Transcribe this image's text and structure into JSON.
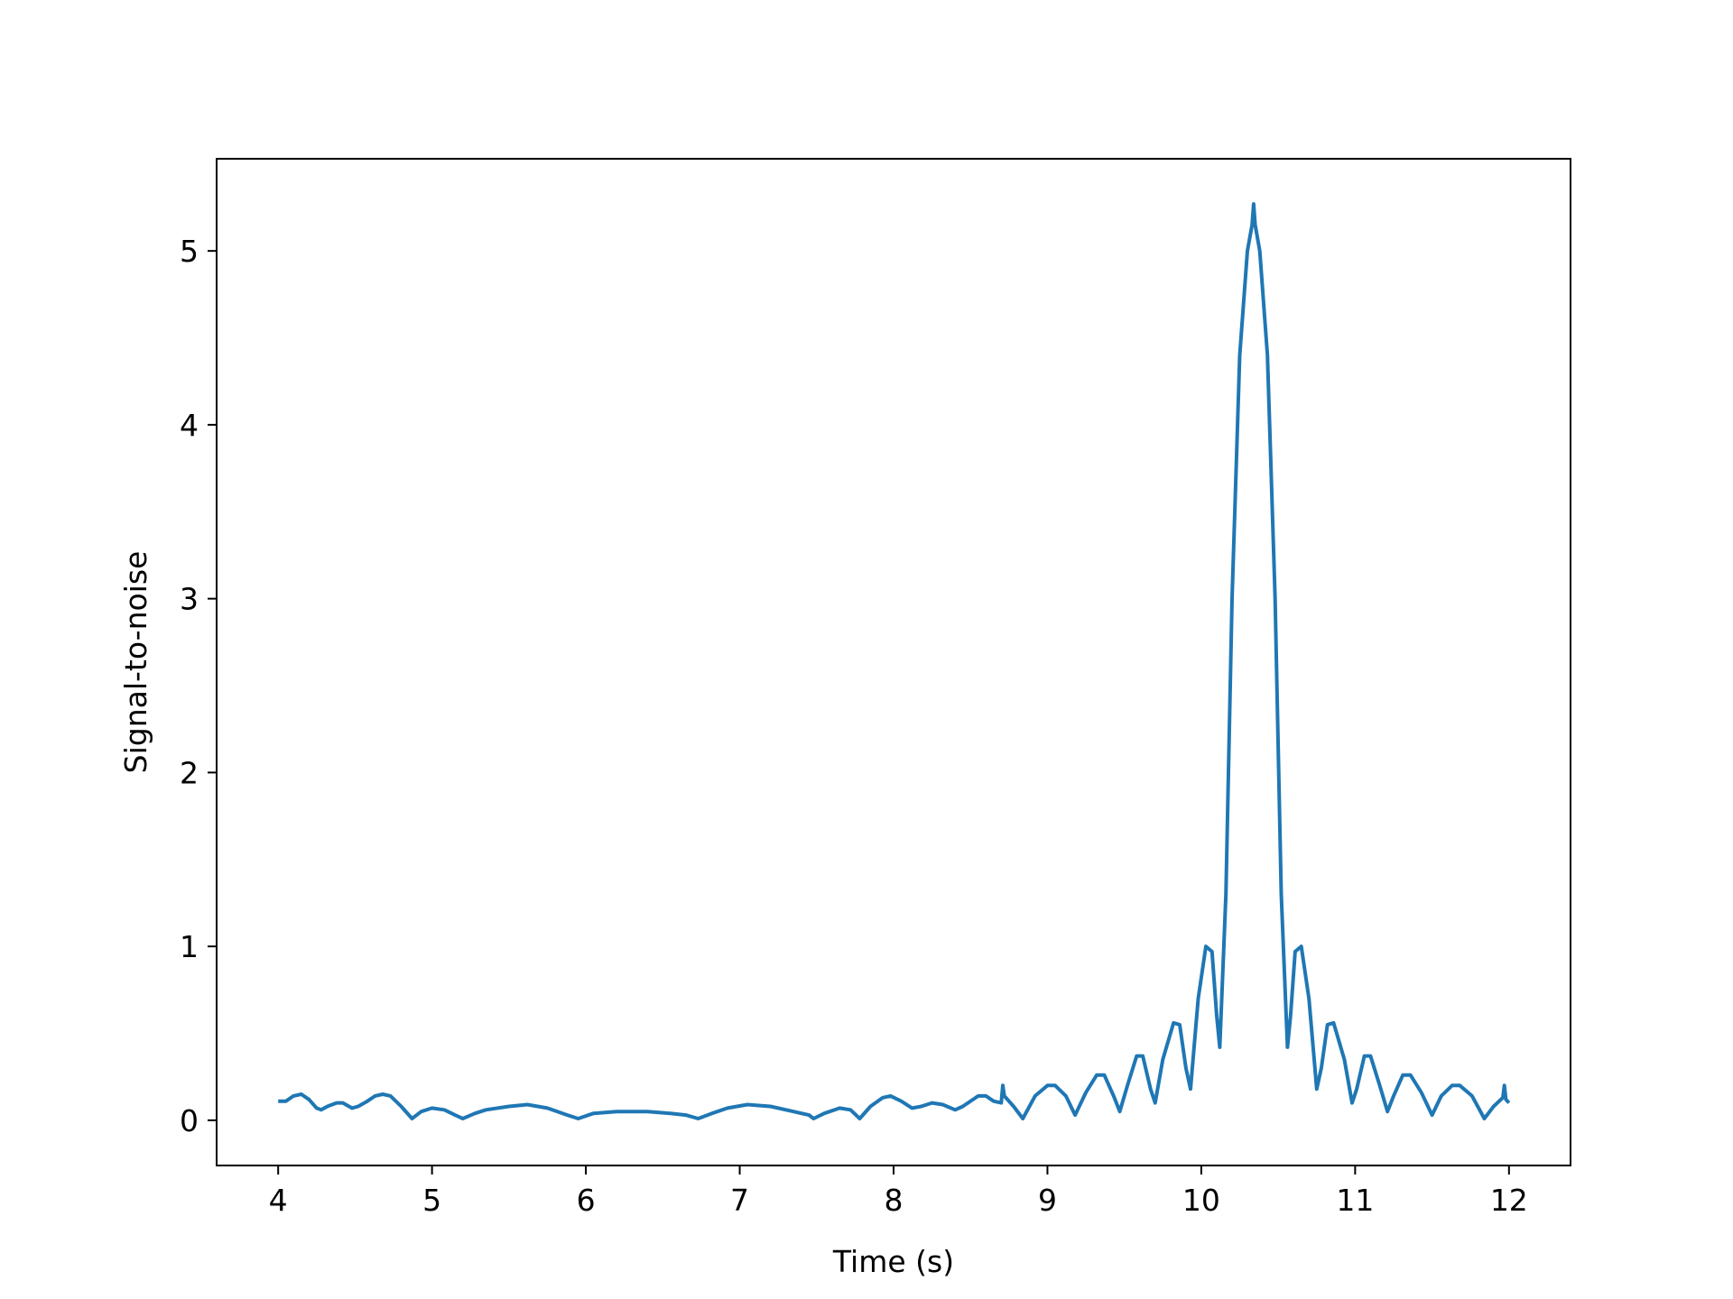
{
  "chart_data": {
    "type": "line",
    "title": "",
    "xlabel": "Time (s)",
    "ylabel": "Signal-to-noise",
    "xlim": [
      3.6,
      12.4
    ],
    "ylim": [
      -0.26,
      5.53
    ],
    "xticks": [
      4,
      5,
      6,
      7,
      8,
      9,
      10,
      11,
      12
    ],
    "yticks": [
      0,
      1,
      2,
      3,
      4,
      5
    ],
    "grid": false,
    "legend": "none",
    "series": [
      {
        "color": "#1f77b4",
        "points": [
          [
            4.0,
            0.11
          ],
          [
            4.05,
            0.11
          ],
          [
            4.1,
            0.14
          ],
          [
            4.15,
            0.15
          ],
          [
            4.2,
            0.12
          ],
          [
            4.25,
            0.07
          ],
          [
            4.28,
            0.06
          ],
          [
            4.32,
            0.08
          ],
          [
            4.38,
            0.1
          ],
          [
            4.42,
            0.1
          ],
          [
            4.48,
            0.07
          ],
          [
            4.52,
            0.08
          ],
          [
            4.58,
            0.11
          ],
          [
            4.63,
            0.14
          ],
          [
            4.68,
            0.15
          ],
          [
            4.73,
            0.14
          ],
          [
            4.8,
            0.08
          ],
          [
            4.87,
            0.01
          ],
          [
            4.93,
            0.05
          ],
          [
            5.0,
            0.07
          ],
          [
            5.08,
            0.06
          ],
          [
            5.15,
            0.03
          ],
          [
            5.2,
            0.01
          ],
          [
            5.28,
            0.04
          ],
          [
            5.35,
            0.06
          ],
          [
            5.5,
            0.08
          ],
          [
            5.62,
            0.09
          ],
          [
            5.75,
            0.07
          ],
          [
            5.88,
            0.03
          ],
          [
            5.95,
            0.01
          ],
          [
            6.05,
            0.04
          ],
          [
            6.2,
            0.05
          ],
          [
            6.4,
            0.05
          ],
          [
            6.55,
            0.04
          ],
          [
            6.65,
            0.03
          ],
          [
            6.73,
            0.01
          ],
          [
            6.82,
            0.04
          ],
          [
            6.92,
            0.07
          ],
          [
            7.05,
            0.09
          ],
          [
            7.2,
            0.08
          ],
          [
            7.35,
            0.05
          ],
          [
            7.45,
            0.03
          ],
          [
            7.48,
            0.01
          ],
          [
            7.55,
            0.04
          ],
          [
            7.65,
            0.07
          ],
          [
            7.72,
            0.06
          ],
          [
            7.78,
            0.01
          ],
          [
            7.85,
            0.08
          ],
          [
            7.93,
            0.13
          ],
          [
            7.98,
            0.14
          ],
          [
            8.05,
            0.11
          ],
          [
            8.12,
            0.07
          ],
          [
            8.18,
            0.08
          ],
          [
            8.25,
            0.1
          ],
          [
            8.32,
            0.09
          ],
          [
            8.4,
            0.06
          ],
          [
            8.45,
            0.08
          ],
          [
            8.55,
            0.14
          ],
          [
            8.6,
            0.14
          ],
          [
            8.65,
            0.11
          ],
          [
            8.7,
            0.1
          ],
          [
            8.71,
            0.2
          ],
          [
            8.72,
            0.14
          ],
          [
            8.78,
            0.08
          ],
          [
            8.84,
            0.01
          ],
          [
            8.92,
            0.14
          ],
          [
            9.0,
            0.2
          ],
          [
            9.05,
            0.2
          ],
          [
            9.12,
            0.14
          ],
          [
            9.18,
            0.03
          ],
          [
            9.25,
            0.16
          ],
          [
            9.32,
            0.26
          ],
          [
            9.37,
            0.26
          ],
          [
            9.43,
            0.14
          ],
          [
            9.47,
            0.05
          ],
          [
            9.52,
            0.2
          ],
          [
            9.58,
            0.37
          ],
          [
            9.62,
            0.37
          ],
          [
            9.67,
            0.18
          ],
          [
            9.7,
            0.1
          ],
          [
            9.75,
            0.35
          ],
          [
            9.82,
            0.56
          ],
          [
            9.86,
            0.55
          ],
          [
            9.9,
            0.3
          ],
          [
            9.93,
            0.18
          ],
          [
            9.98,
            0.7
          ],
          [
            10.03,
            1.0
          ],
          [
            10.07,
            0.97
          ],
          [
            10.1,
            0.6
          ],
          [
            10.12,
            0.42
          ],
          [
            10.16,
            1.3
          ],
          [
            10.2,
            3.0
          ],
          [
            10.25,
            4.4
          ],
          [
            10.3,
            5.0
          ],
          [
            10.33,
            5.15
          ],
          [
            10.34,
            5.27
          ],
          [
            10.35,
            5.15
          ],
          [
            10.38,
            5.0
          ],
          [
            10.43,
            4.4
          ],
          [
            10.48,
            3.0
          ],
          [
            10.52,
            1.3
          ],
          [
            10.56,
            0.42
          ],
          [
            10.58,
            0.6
          ],
          [
            10.61,
            0.97
          ],
          [
            10.65,
            1.0
          ],
          [
            10.7,
            0.7
          ],
          [
            10.75,
            0.18
          ],
          [
            10.78,
            0.3
          ],
          [
            10.82,
            0.55
          ],
          [
            10.86,
            0.56
          ],
          [
            10.93,
            0.35
          ],
          [
            10.98,
            0.1
          ],
          [
            11.01,
            0.18
          ],
          [
            11.06,
            0.37
          ],
          [
            11.1,
            0.37
          ],
          [
            11.16,
            0.2
          ],
          [
            11.21,
            0.05
          ],
          [
            11.25,
            0.14
          ],
          [
            11.31,
            0.26
          ],
          [
            11.36,
            0.26
          ],
          [
            11.43,
            0.16
          ],
          [
            11.5,
            0.03
          ],
          [
            11.56,
            0.14
          ],
          [
            11.63,
            0.2
          ],
          [
            11.68,
            0.2
          ],
          [
            11.76,
            0.14
          ],
          [
            11.84,
            0.01
          ],
          [
            11.9,
            0.08
          ],
          [
            11.96,
            0.13
          ],
          [
            11.97,
            0.2
          ],
          [
            11.98,
            0.12
          ],
          [
            12.0,
            0.1
          ]
        ]
      }
    ]
  }
}
